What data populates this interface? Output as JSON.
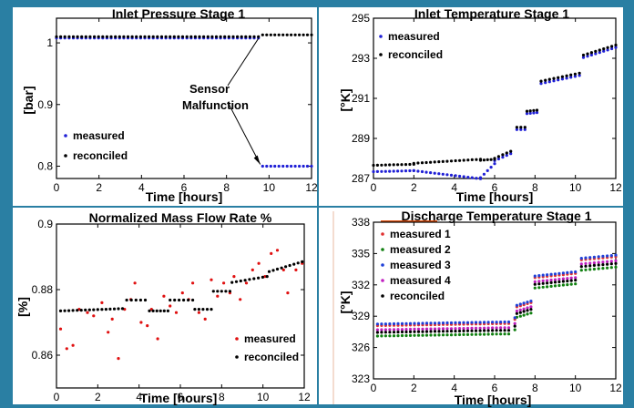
{
  "chart_data": [
    {
      "type": "scatter",
      "title": "Inlet Pressure Stage 1",
      "xlabel": "Time [hours]",
      "ylabel": "[bar]",
      "xlim": [
        0,
        12
      ],
      "ylim": [
        0.78,
        1.04
      ],
      "xticks": [
        "0",
        "2",
        "4",
        "6",
        "8",
        "10",
        "12"
      ],
      "yticks": [
        {
          "v": 0.8,
          "l": "0.8"
        },
        {
          "v": 0.9,
          "l": "0.9"
        },
        {
          "v": 1.0,
          "l": "1"
        }
      ],
      "legend": "bottom-left",
      "annotation": {
        "lines": [
          "Sensor",
          "Malfunction"
        ],
        "target_x": 9.5
      },
      "series": [
        {
          "name": "measured",
          "color": "#1f1fd6",
          "segments": [
            {
              "x0": 0,
              "x1": 9.5,
              "y0": 1.008,
              "y1": 1.008
            },
            {
              "x0": 9.7,
              "x1": 12,
              "y0": 0.8,
              "y1": 0.8
            }
          ]
        },
        {
          "name": "reconciled",
          "color": "#000000",
          "segments": [
            {
              "x0": 0,
              "x1": 9.5,
              "y0": 1.01,
              "y1": 1.01
            },
            {
              "x0": 9.7,
              "x1": 12,
              "y0": 1.013,
              "y1": 1.013
            }
          ]
        }
      ]
    },
    {
      "type": "scatter",
      "title": "Inlet Temperature Stage 1",
      "xlabel": "Time [hours]",
      "ylabel": "[°K]",
      "xlim": [
        0,
        12
      ],
      "ylim": [
        287,
        295
      ],
      "xticks": [
        "0",
        "2",
        "4",
        "6",
        "8",
        "10",
        "12"
      ],
      "yticks": [
        {
          "v": 287,
          "l": "287"
        },
        {
          "v": 289,
          "l": "289"
        },
        {
          "v": 291,
          "l": "291"
        },
        {
          "v": 293,
          "l": "293"
        },
        {
          "v": 295,
          "l": "295"
        }
      ],
      "legend": "top-left",
      "series": [
        {
          "name": "measured",
          "color": "#1f1fd6",
          "offset": -0.06,
          "segments": [
            {
              "x0": 0,
              "x1": 2,
              "y0": 287.4,
              "y1": 287.45
            },
            {
              "x0": 2,
              "x1": 5.3,
              "y0": 287.45,
              "y1": 287.05
            },
            {
              "x0": 5.3,
              "x1": 6,
              "y0": 287.1,
              "y1": 287.8
            },
            {
              "x0": 6,
              "x1": 6.8,
              "y0": 287.95,
              "y1": 288.3
            },
            {
              "x0": 7.1,
              "x1": 7.5,
              "y0": 289.5,
              "y1": 289.5
            },
            {
              "x0": 7.6,
              "x1": 8.1,
              "y0": 290.3,
              "y1": 290.35
            },
            {
              "x0": 8.3,
              "x1": 10.2,
              "y0": 291.8,
              "y1": 292.2
            },
            {
              "x0": 10.4,
              "x1": 12,
              "y0": 293.1,
              "y1": 293.6
            }
          ]
        },
        {
          "name": "reconciled",
          "color": "#000000",
          "offset": 0.06,
          "segments": [
            {
              "x0": 0,
              "x1": 2,
              "y0": 287.6,
              "y1": 287.65
            },
            {
              "x0": 2,
              "x1": 5.3,
              "y0": 287.7,
              "y1": 287.9
            },
            {
              "x0": 5.3,
              "x1": 6,
              "y0": 287.85,
              "y1": 287.9
            },
            {
              "x0": 6,
              "x1": 6.8,
              "y0": 287.95,
              "y1": 288.3
            },
            {
              "x0": 7.1,
              "x1": 7.5,
              "y0": 289.5,
              "y1": 289.5
            },
            {
              "x0": 7.6,
              "x1": 8.1,
              "y0": 290.3,
              "y1": 290.35
            },
            {
              "x0": 8.3,
              "x1": 10.2,
              "y0": 291.8,
              "y1": 292.2
            },
            {
              "x0": 10.4,
              "x1": 12,
              "y0": 293.1,
              "y1": 293.6
            }
          ]
        }
      ]
    },
    {
      "type": "scatter",
      "title": "Normalized Mass Flow Rate %",
      "xlabel": "Time [hours]",
      "ylabel": "[%]",
      "xlim": [
        0,
        12
      ],
      "ylim": [
        0.85,
        0.9
      ],
      "xticks": [
        "0",
        "2",
        "4",
        "6",
        "8",
        "10",
        "12"
      ],
      "yticks": [
        {
          "v": 0.86,
          "l": "0.86"
        },
        {
          "v": 0.88,
          "l": "0.88"
        },
        {
          "v": 0.9,
          "l": "0.9"
        }
      ],
      "legend": "bottom-right",
      "series": [
        {
          "name": "measured",
          "color": "#e01010",
          "points": [
            [
              0.2,
              0.868
            ],
            [
              0.5,
              0.862
            ],
            [
              0.8,
              0.863
            ],
            [
              1.1,
              0.874
            ],
            [
              1.5,
              0.873
            ],
            [
              1.8,
              0.872
            ],
            [
              2.2,
              0.876
            ],
            [
              2.5,
              0.867
            ],
            [
              2.7,
              0.871
            ],
            [
              3.0,
              0.859
            ],
            [
              3.3,
              0.874
            ],
            [
              3.6,
              0.877
            ],
            [
              3.8,
              0.882
            ],
            [
              4.1,
              0.87
            ],
            [
              4.4,
              0.869
            ],
            [
              4.6,
              0.874
            ],
            [
              4.9,
              0.865
            ],
            [
              5.2,
              0.878
            ],
            [
              5.5,
              0.875
            ],
            [
              5.8,
              0.873
            ],
            [
              6.1,
              0.879
            ],
            [
              6.4,
              0.877
            ],
            [
              6.6,
              0.882
            ],
            [
              6.9,
              0.873
            ],
            [
              7.2,
              0.871
            ],
            [
              7.5,
              0.883
            ],
            [
              7.8,
              0.878
            ],
            [
              8.1,
              0.882
            ],
            [
              8.4,
              0.879
            ],
            [
              8.6,
              0.884
            ],
            [
              8.9,
              0.877
            ],
            [
              9.2,
              0.882
            ],
            [
              9.5,
              0.886
            ],
            [
              9.8,
              0.888
            ],
            [
              10.1,
              0.884
            ],
            [
              10.4,
              0.891
            ],
            [
              10.7,
              0.892
            ],
            [
              11.0,
              0.886
            ],
            [
              11.2,
              0.879
            ],
            [
              11.6,
              0.886
            ],
            [
              11.9,
              0.888
            ]
          ]
        },
        {
          "name": "reconciled",
          "color": "#000000",
          "segments": [
            {
              "x0": 0.2,
              "x1": 3.2,
              "y0": 0.8735,
              "y1": 0.8742
            },
            {
              "x0": 3.4,
              "x1": 4.3,
              "y0": 0.8768,
              "y1": 0.8768
            },
            {
              "x0": 4.5,
              "x1": 5.4,
              "y0": 0.8735,
              "y1": 0.8735
            },
            {
              "x0": 5.5,
              "x1": 6.6,
              "y0": 0.8768,
              "y1": 0.8768
            },
            {
              "x0": 6.7,
              "x1": 7.5,
              "y0": 0.874,
              "y1": 0.874
            },
            {
              "x0": 7.6,
              "x1": 8.4,
              "y0": 0.8795,
              "y1": 0.8795
            },
            {
              "x0": 8.5,
              "x1": 10.2,
              "y0": 0.8822,
              "y1": 0.884
            },
            {
              "x0": 10.3,
              "x1": 11.9,
              "y0": 0.8855,
              "y1": 0.8885
            }
          ]
        }
      ]
    },
    {
      "type": "scatter",
      "title": "Discharge Temperature Stage 1",
      "xlabel": "Time [hours]",
      "ylabel": "[°K]",
      "xlim": [
        0,
        12
      ],
      "ylim": [
        323,
        338
      ],
      "xticks": [
        "0",
        "2",
        "4",
        "6",
        "8",
        "10",
        "12"
      ],
      "yticks": [
        {
          "v": 323,
          "l": "323"
        },
        {
          "v": 326,
          "l": "326"
        },
        {
          "v": 329,
          "l": "329"
        },
        {
          "v": 332,
          "l": "332"
        },
        {
          "v": 335,
          "l": "335"
        },
        {
          "v": 338,
          "l": "338"
        }
      ],
      "legend": "top-left",
      "series": [
        {
          "name": "measured 1",
          "color": "#e03030",
          "offset": 0.1,
          "segments": [
            {
              "x0": 0.2,
              "x1": 6.5,
              "y0": 328.0,
              "y1": 328.2
            },
            {
              "x0": 6.7,
              "x1": 7.0,
              "y0": 328.2,
              "y1": 328.6
            },
            {
              "x0": 7.1,
              "x1": 7.8,
              "y0": 329.8,
              "y1": 330.2
            },
            {
              "x0": 8.0,
              "x1": 10.0,
              "y0": 332.6,
              "y1": 333.0
            },
            {
              "x0": 10.3,
              "x1": 12.0,
              "y0": 334.3,
              "y1": 334.6
            }
          ]
        },
        {
          "name": "measured 2",
          "color": "#108010",
          "offset": -0.9,
          "segments": [
            {
              "x0": 0.2,
              "x1": 6.5,
              "y0": 328.0,
              "y1": 328.2
            },
            {
              "x0": 6.7,
              "x1": 7.0,
              "y0": 328.2,
              "y1": 328.6
            },
            {
              "x0": 7.1,
              "x1": 7.8,
              "y0": 329.8,
              "y1": 330.2
            },
            {
              "x0": 8.0,
              "x1": 10.0,
              "y0": 332.6,
              "y1": 333.0
            },
            {
              "x0": 10.3,
              "x1": 12.0,
              "y0": 334.3,
              "y1": 334.6
            }
          ]
        },
        {
          "name": "measured 3",
          "color": "#1f40d8",
          "offset": 0.25,
          "segments": [
            {
              "x0": 0.2,
              "x1": 6.5,
              "y0": 328.0,
              "y1": 328.2
            },
            {
              "x0": 6.7,
              "x1": 7.0,
              "y0": 328.2,
              "y1": 328.6
            },
            {
              "x0": 7.1,
              "x1": 7.8,
              "y0": 329.8,
              "y1": 330.2
            },
            {
              "x0": 8.0,
              "x1": 10.0,
              "y0": 332.6,
              "y1": 333.0
            },
            {
              "x0": 10.3,
              "x1": 12.0,
              "y0": 334.3,
              "y1": 334.6
            }
          ]
        },
        {
          "name": "measured 4",
          "color": "#c020c0",
          "offset": -0.3,
          "segments": [
            {
              "x0": 0.2,
              "x1": 6.5,
              "y0": 328.0,
              "y1": 328.2
            },
            {
              "x0": 6.7,
              "x1": 7.0,
              "y0": 328.2,
              "y1": 328.6
            },
            {
              "x0": 7.1,
              "x1": 7.8,
              "y0": 329.8,
              "y1": 330.2
            },
            {
              "x0": 8.0,
              "x1": 10.0,
              "y0": 332.6,
              "y1": 333.0
            },
            {
              "x0": 10.3,
              "x1": 12.0,
              "y0": 334.3,
              "y1": 334.6
            }
          ]
        },
        {
          "name": "reconciled",
          "color": "#000000",
          "offset": -0.55,
          "segments": [
            {
              "x0": 0.2,
              "x1": 6.5,
              "y0": 328.0,
              "y1": 328.2
            },
            {
              "x0": 6.7,
              "x1": 7.0,
              "y0": 328.2,
              "y1": 328.6
            },
            {
              "x0": 7.1,
              "x1": 7.8,
              "y0": 329.8,
              "y1": 330.2
            },
            {
              "x0": 8.0,
              "x1": 10.0,
              "y0": 332.6,
              "y1": 333.0
            },
            {
              "x0": 10.3,
              "x1": 12.0,
              "y0": 334.3,
              "y1": 334.6
            }
          ]
        }
      ]
    }
  ]
}
